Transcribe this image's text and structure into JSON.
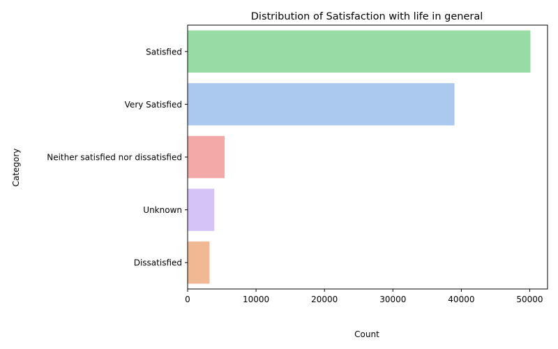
{
  "chart_data": {
    "type": "bar",
    "orientation": "horizontal",
    "title": "Distribution of Satisfaction with life in general",
    "xlabel": "Count",
    "ylabel": "Category",
    "categories": [
      "Satisfied",
      "Very Satisfied",
      "Neither satisfied nor dissatisfied",
      "Unknown",
      "Dissatisfied"
    ],
    "values": [
      50100,
      39000,
      5400,
      3900,
      3200
    ],
    "colors": [
      "#98dba5",
      "#abc8ee",
      "#f2a9a8",
      "#d5c2f7",
      "#f1b993"
    ],
    "xlim": [
      0,
      52600
    ],
    "xticks": [
      0,
      10000,
      20000,
      30000,
      40000,
      50000
    ],
    "xtick_labels": [
      "0",
      "10000",
      "20000",
      "30000",
      "40000",
      "50000"
    ],
    "grid": false,
    "legend": "none"
  }
}
